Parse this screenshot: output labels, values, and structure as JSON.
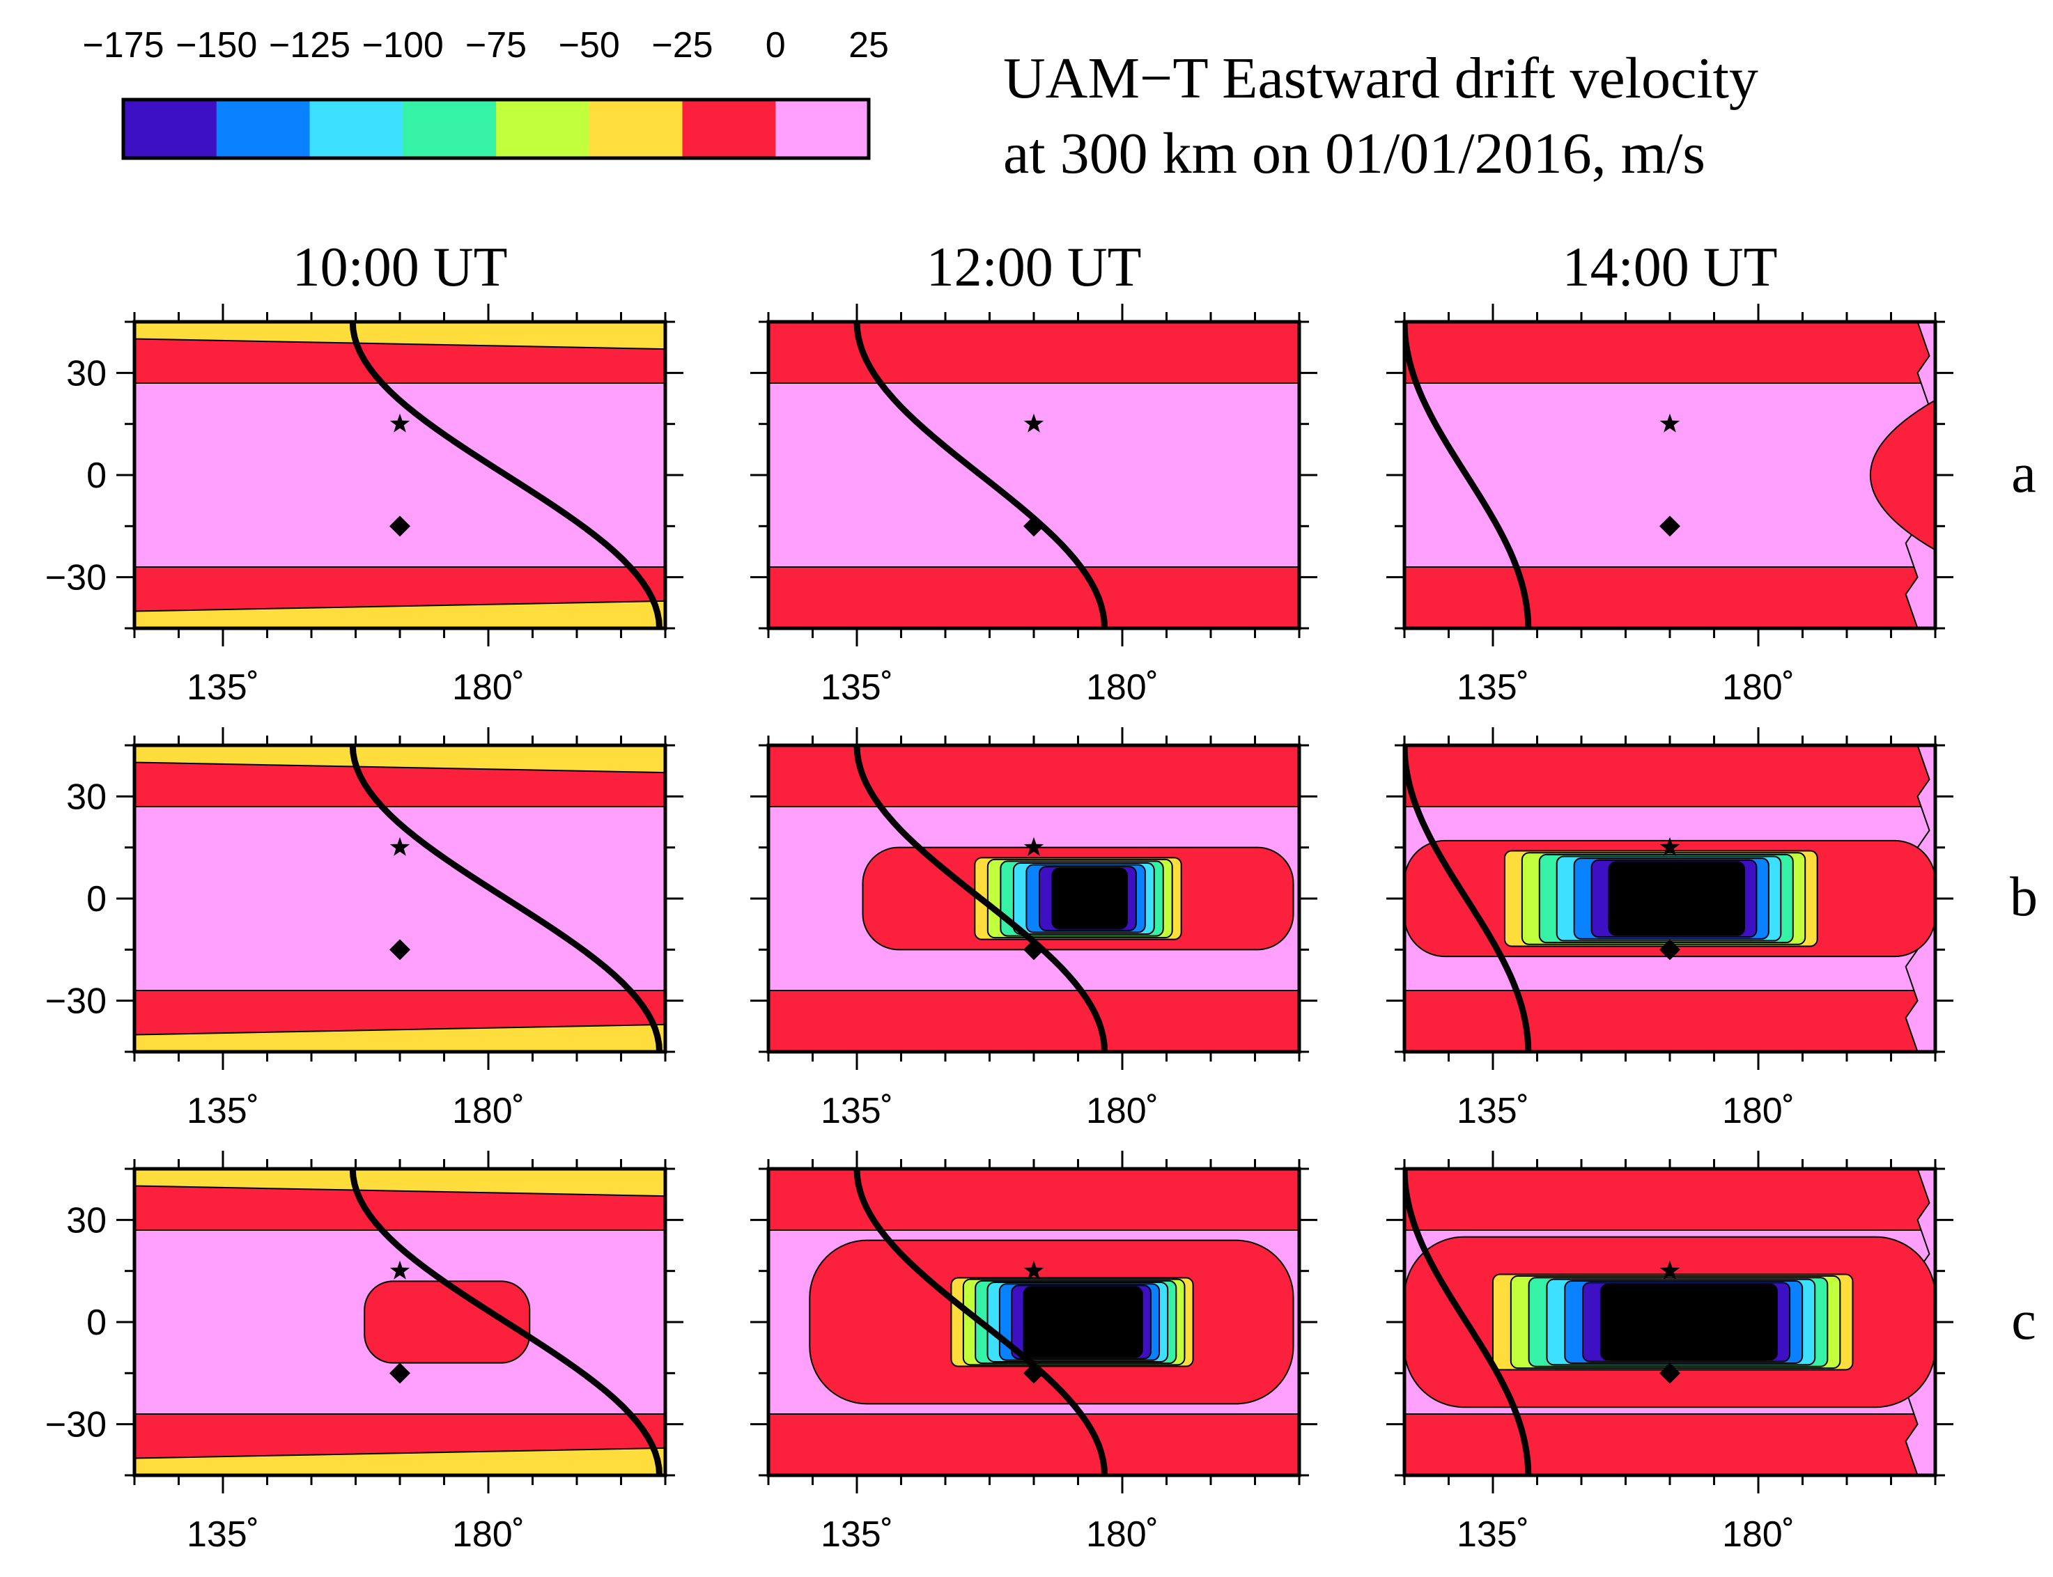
{
  "chart_data": {
    "type": "heatmap",
    "title": "UAM−T Eastward drift velocity",
    "subtitle": "at 300 km on 01/01/2016, m/s",
    "colorbar": {
      "ticks": [
        "−175",
        "−150",
        "−125",
        "−100",
        "−75",
        "−50",
        "−25",
        "0",
        "25"
      ],
      "levels": [
        -175,
        -150,
        -125,
        -100,
        -75,
        -50,
        -25,
        0,
        25
      ],
      "colors": [
        "#3d10c4",
        "#0a82ff",
        "#3ee0ff",
        "#36f2a6",
        "#c2ff3c",
        "#ffdd3c",
        "#fb213c",
        "#ff9ffe"
      ]
    },
    "columns": [
      "10:00 UT",
      "12:00 UT",
      "14:00 UT"
    ],
    "rows": [
      "a",
      "b",
      "c"
    ],
    "x_axis": {
      "unit": "longitude",
      "range": [
        120,
        210
      ],
      "tick_values": [
        135,
        180
      ],
      "tick_labels": [
        "135˚",
        "180˚"
      ]
    },
    "y_axis": {
      "unit": "latitude",
      "range": [
        -45,
        45
      ],
      "tick_values": [
        30,
        0,
        -30
      ],
      "tick_labels": [
        "30",
        "0",
        "−30"
      ]
    },
    "markers": [
      {
        "name": "star",
        "lon": 165,
        "lat": 15
      },
      {
        "name": "diamond",
        "lon": 165,
        "lat": -15
      }
    ],
    "background_bands": [
      {
        "lat_from": -45,
        "lat_to": -27,
        "value_range": [
          -25,
          0
        ]
      },
      {
        "lat_from": -27,
        "lat_to": 27,
        "value_range": [
          0,
          25
        ]
      },
      {
        "lat_from": 27,
        "lat_to": 45,
        "value_range": [
          -25,
          0
        ]
      }
    ],
    "panels": [
      {
        "row": "a",
        "time": "10:00 UT",
        "terminator": {
          "lon_north": 157,
          "lon_south": 209
        },
        "yellow_edges": true,
        "anomaly": null
      },
      {
        "row": "a",
        "time": "12:00 UT",
        "terminator": {
          "lon_north": 135,
          "lon_south": 177
        },
        "yellow_edges": false,
        "anomaly": null
      },
      {
        "row": "a",
        "time": "14:00 UT",
        "terminator": {
          "lon_north": 120,
          "lon_south": 141
        },
        "yellow_edges": false,
        "anomaly": null
      },
      {
        "row": "b",
        "time": "10:00 UT",
        "terminator": {
          "lon_north": 157,
          "lon_south": 209
        },
        "yellow_edges": true,
        "anomaly": null
      },
      {
        "row": "b",
        "time": "12:00 UT",
        "terminator": {
          "lon_north": 135,
          "lon_south": 177
        },
        "yellow_edges": false,
        "anomaly": {
          "outer_lon": [
            136,
            209
          ],
          "outer_lat": [
            -15,
            15
          ],
          "inner_lon": [
            155,
            190
          ],
          "inner_lat": [
            -12,
            12
          ],
          "min_value": -150
        }
      },
      {
        "row": "b",
        "time": "14:00 UT",
        "terminator": {
          "lon_north": 120,
          "lon_south": 141
        },
        "yellow_edges": false,
        "anomaly": {
          "outer_lon": [
            120,
            210
          ],
          "outer_lat": [
            -17,
            17
          ],
          "inner_lon": [
            137,
            190
          ],
          "inner_lat": [
            -14,
            14
          ],
          "min_value": -175
        }
      },
      {
        "row": "c",
        "time": "10:00 UT",
        "terminator": {
          "lon_north": 157,
          "lon_south": 209
        },
        "yellow_edges": true,
        "anomaly": {
          "outer_lon": [
            159,
            187
          ],
          "outer_lat": [
            -12,
            12
          ],
          "inner_lon": null,
          "inner_lat": null,
          "min_value": -25
        }
      },
      {
        "row": "c",
        "time": "12:00 UT",
        "terminator": {
          "lon_north": 135,
          "lon_south": 177
        },
        "yellow_edges": false,
        "anomaly": {
          "outer_lon": [
            127,
            209
          ],
          "outer_lat": [
            -24,
            24
          ],
          "inner_lon": [
            151,
            192
          ],
          "inner_lat": [
            -13,
            13
          ],
          "min_value": -200
        }
      },
      {
        "row": "c",
        "time": "14:00 UT",
        "terminator": {
          "lon_north": 120,
          "lon_south": 141
        },
        "yellow_edges": false,
        "anomaly": {
          "outer_lon": [
            120,
            210
          ],
          "outer_lat": [
            -25,
            25
          ],
          "inner_lon": [
            135,
            196
          ],
          "inner_lat": [
            -14,
            14
          ],
          "min_value": -200
        }
      }
    ]
  }
}
